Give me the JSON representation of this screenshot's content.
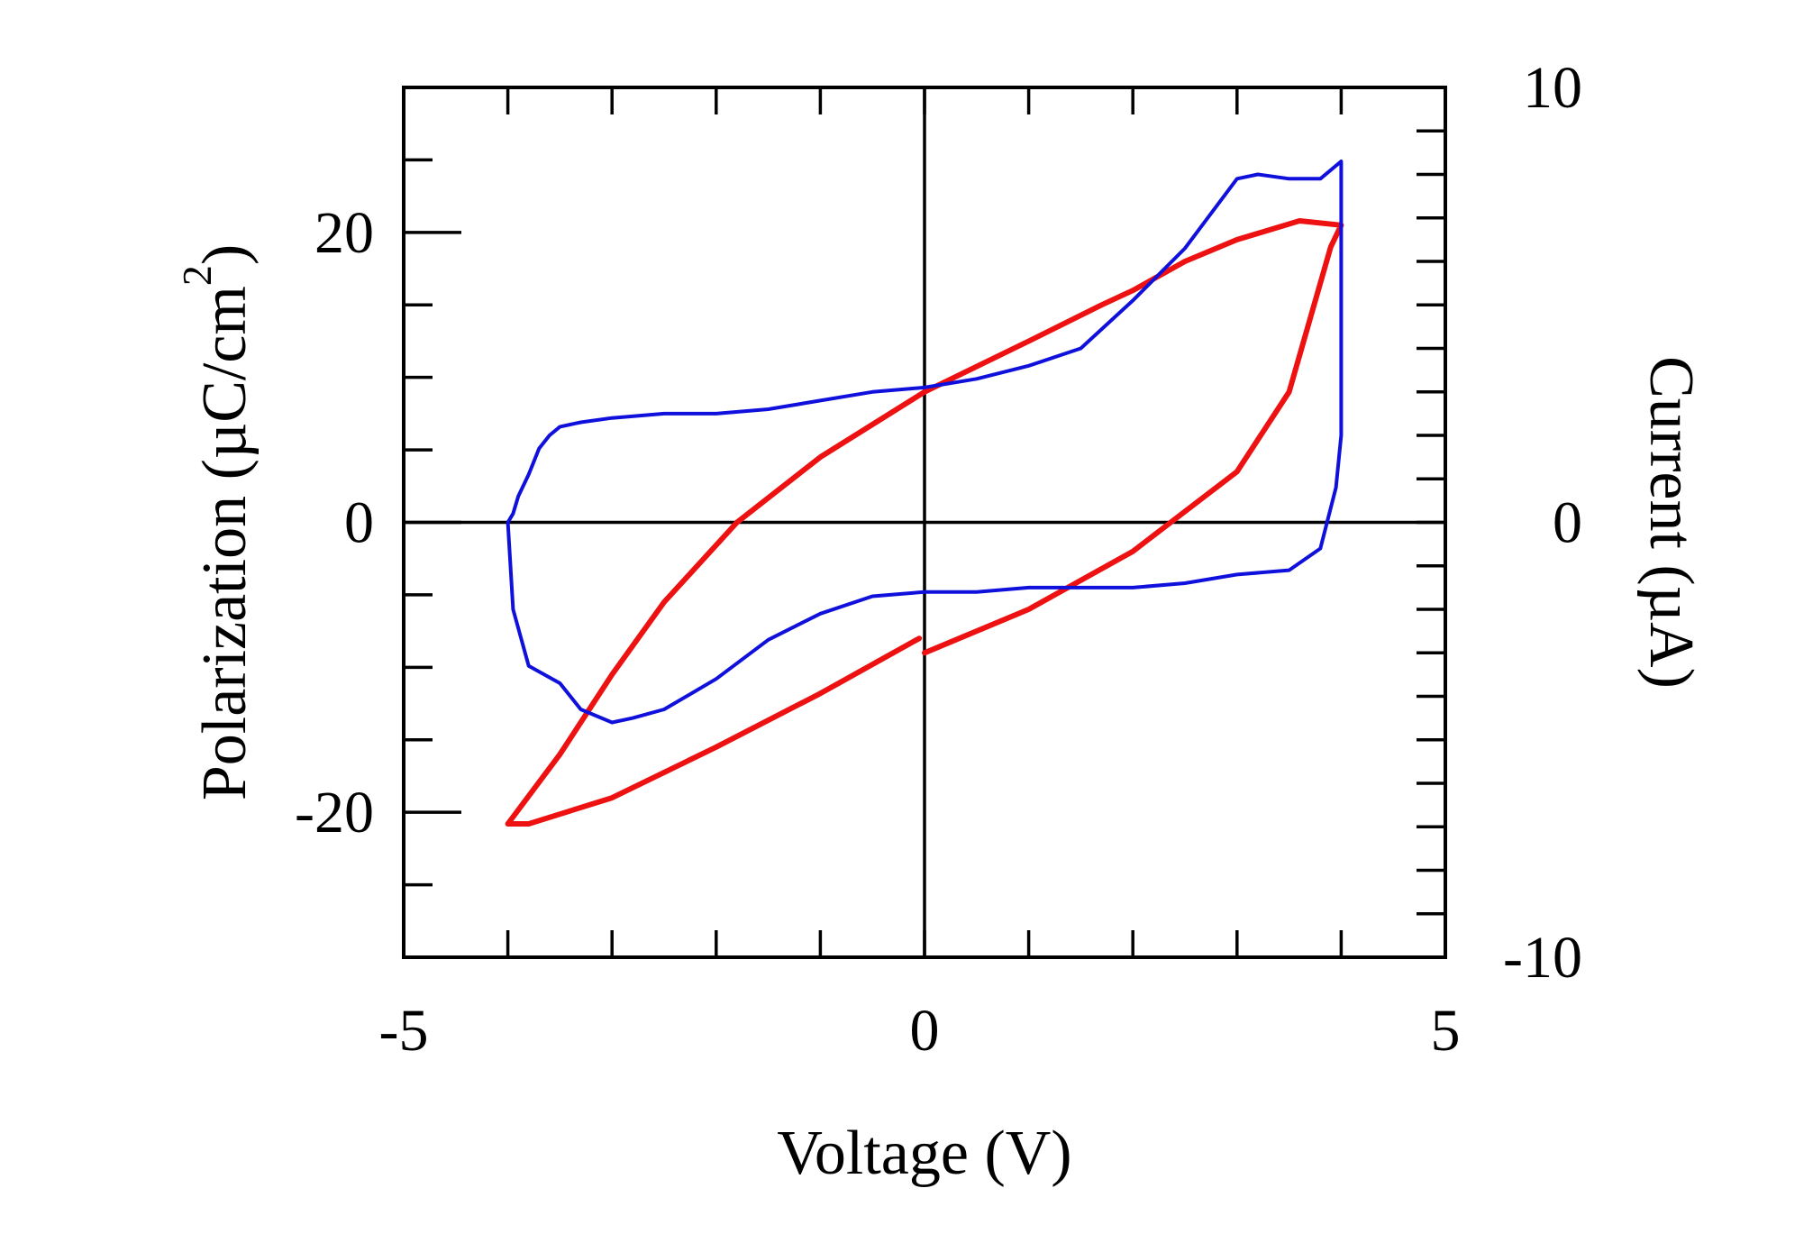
{
  "chart_data": {
    "type": "line",
    "title": "",
    "xlabel": "Voltage (V)",
    "ylabel_left": {
      "main": "Polarization (µC/cm",
      "superscript": "2",
      "close": ")"
    },
    "ylabel_right": "Current (µA)",
    "xlim": [
      -5,
      5
    ],
    "ylim_left": [
      -30,
      30
    ],
    "ylim_right": [
      -10,
      10
    ],
    "x_ticks": [
      "-5",
      "0",
      "5"
    ],
    "y_left_ticks": [
      "20",
      "0",
      "-20"
    ],
    "y_right_ticks": [
      "10",
      "0",
      "-10"
    ],
    "grid": false,
    "colors": {
      "polarization": "#ee1111",
      "current": "#1010dd",
      "axes": "#000000"
    },
    "series": [
      {
        "axis": "left",
        "color": "#ee1111",
        "x": [
          0,
          1.0,
          2.0,
          3.0,
          3.5,
          3.9,
          4.0,
          3.6,
          3.0,
          2.5,
          2.0,
          1.7,
          1.0,
          0,
          -1.0,
          -1.8,
          -2.5,
          -3.0,
          -3.5,
          -4.0,
          -3.8,
          -3.0,
          -2.0,
          -1.0,
          -0.05
        ],
        "y": [
          -9,
          -6,
          -2,
          3.5,
          9,
          19,
          20.5,
          20.8,
          19.5,
          18,
          16,
          15,
          12.5,
          9,
          4.5,
          0,
          -5.5,
          -10.5,
          -16,
          -20.8,
          -20.8,
          -19,
          -15.5,
          -11.8,
          -8
        ]
      },
      {
        "axis": "right",
        "color": "#1010dd",
        "x": [
          -4.0,
          -3.95,
          -3.9,
          -3.8,
          -3.7,
          -3.6,
          -3.5,
          -3.3,
          -3.0,
          -2.5,
          -2.0,
          -1.5,
          -1.0,
          -0.5,
          0,
          0.5,
          1.0,
          1.5,
          2.0,
          2.5,
          3.0,
          3.2,
          3.5,
          3.8,
          4.0,
          4.0,
          3.95,
          3.8,
          3.5,
          3.0,
          2.5,
          2.0,
          1.5,
          1.0,
          0.5,
          0,
          -0.5,
          -1.0,
          -1.5,
          -2.0,
          -2.5,
          -2.8,
          -3.0,
          -3.3,
          -3.5,
          -3.8,
          -3.95,
          -4.0
        ],
        "y": [
          0,
          0.2,
          0.6,
          1.1,
          1.7,
          2.0,
          2.2,
          2.3,
          2.4,
          2.5,
          2.5,
          2.6,
          2.8,
          3.0,
          3.1,
          3.3,
          3.6,
          4.0,
          5.1,
          6.3,
          7.9,
          8.0,
          7.9,
          7.9,
          8.3,
          2.0,
          0.8,
          -0.6,
          -1.1,
          -1.2,
          -1.4,
          -1.5,
          -1.5,
          -1.5,
          -1.6,
          -1.6,
          -1.7,
          -2.1,
          -2.7,
          -3.6,
          -4.3,
          -4.5,
          -4.6,
          -4.3,
          -3.7,
          -3.3,
          -2.0,
          0
        ]
      }
    ]
  }
}
